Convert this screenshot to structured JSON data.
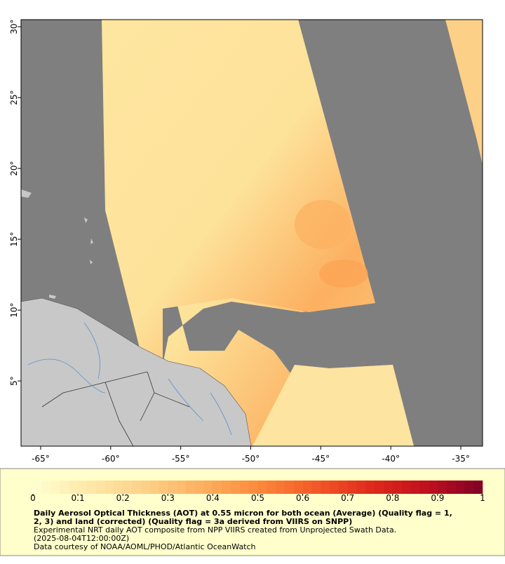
{
  "map": {
    "lonlim": [
      -66.4,
      -33.45
    ],
    "latlim": [
      0.4,
      30.5
    ],
    "lon_ticks": [
      {
        "value": -65,
        "label": "-65°"
      },
      {
        "value": -60,
        "label": "-60°"
      },
      {
        "value": -55,
        "label": "-55°"
      },
      {
        "value": -50,
        "label": "-50°"
      },
      {
        "value": -45,
        "label": "-45°"
      },
      {
        "value": -40,
        "label": "-40°"
      },
      {
        "value": -35,
        "label": "-35°"
      }
    ],
    "lat_ticks": [
      {
        "value": 5,
        "label": "5°"
      },
      {
        "value": 10,
        "label": "10°"
      },
      {
        "value": 15,
        "label": "15°"
      },
      {
        "value": 20,
        "label": "20°"
      },
      {
        "value": 25,
        "label": "25°"
      },
      {
        "value": 30,
        "label": "30°"
      }
    ]
  },
  "colorbar": {
    "lim": [
      0,
      1
    ],
    "ticks": [
      0,
      0.1,
      0.2,
      0.3,
      0.4,
      0.5,
      0.6,
      0.7,
      0.8,
      0.9,
      1
    ],
    "colors": [
      "#ffffd4",
      "#fee8a8",
      "#fdd088",
      "#fdb060",
      "#fc8a3c",
      "#f45a28",
      "#e02a1c",
      "#c0101e",
      "#800026"
    ]
  },
  "caption": {
    "title_lines": [
      "Daily Aerosol Optical Thickness (AOT) at 0.55 micron for both ocean (Average) (Quality flag = 1,",
      "2, 3) and land (corrected) (Quality flag = 3a derived from VIIRS on SNPP)"
    ],
    "lines": [
      "Experimental NRT daily AOT composite from NPP VIIRS created from Unprojected Swath Data.",
      "(2025-08-04T12:00:00Z)",
      "Data courtesy of NOAA/AOML/PHOD/Atlantic OceanWatch"
    ]
  }
}
